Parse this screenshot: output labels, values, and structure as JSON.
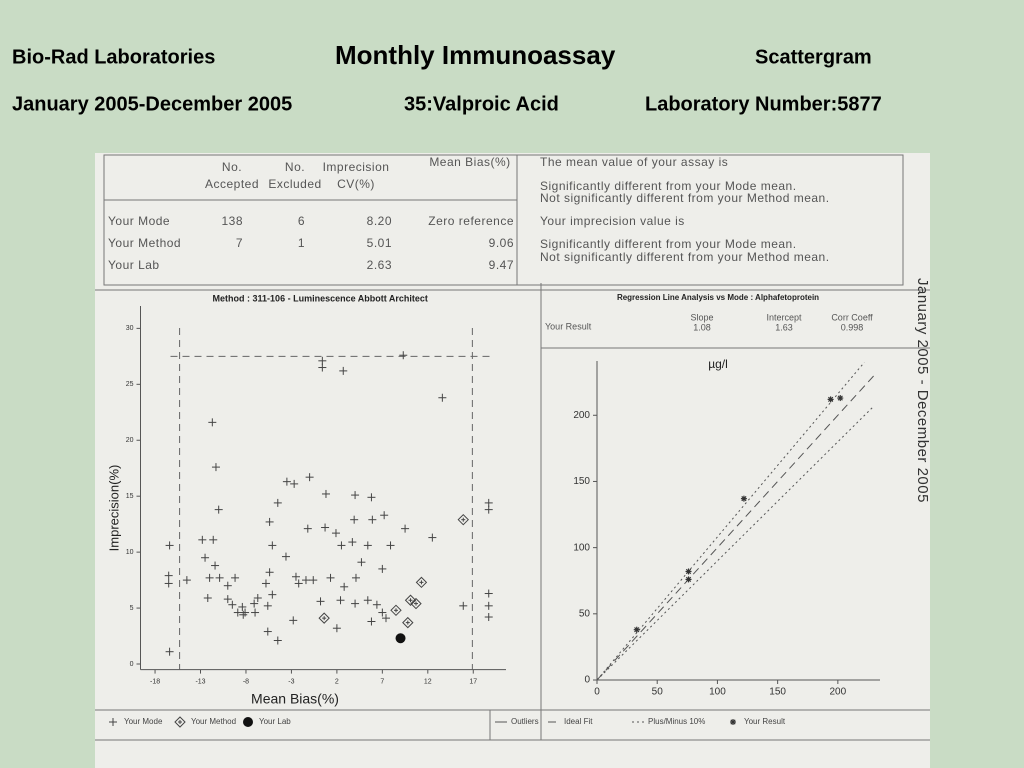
{
  "header": {
    "org": "Bio-Rad  Laboratories",
    "program": "Monthly Immunoassay",
    "report": "Scattergram",
    "period": "January 2005-December 2005",
    "analyte": "35:Valproic Acid",
    "lab": "Laboratory Number:5877"
  },
  "side_text": "January  2005  -  December  2005",
  "table": {
    "columns": [
      [
        "No.",
        "Accepted"
      ],
      [
        "No.",
        "Excluded"
      ],
      [
        "Imprecision",
        "CV(%)"
      ],
      [
        "Mean Bias(%)"
      ]
    ],
    "rows": [
      {
        "label": "Your Mode",
        "cells": [
          "138",
          "6",
          "8.20",
          "Zero reference"
        ]
      },
      {
        "label": "Your Method",
        "cells": [
          "7",
          "1",
          "5.01",
          "9.06"
        ]
      },
      {
        "label": "Your Lab",
        "cells": [
          null,
          null,
          "2.63",
          "9.47"
        ]
      }
    ]
  },
  "notes": [
    "The mean value of your assay is",
    "Significantly different from your Mode mean.",
    "Not significantly different from your Method mean.",
    "Your imprecision value is",
    "Significantly different from your Mode mean.",
    "Not significantly different from your Method mean."
  ],
  "chart_data": [
    {
      "type": "scatter",
      "title": "Method : 311-106 - Luminescence Abbott Architect",
      "xlabel": "Mean Bias(%)",
      "ylabel": "Imprecision(%)",
      "xlim": [
        -19.6,
        20.6
      ],
      "ylim": [
        -0.5,
        32
      ],
      "xticks": [
        -18,
        -13,
        -8,
        -3,
        2,
        7,
        12,
        17
      ],
      "yticks": [
        0,
        5,
        10,
        15,
        20,
        25,
        30
      ],
      "limit_x": [
        -15.3,
        16.9
      ],
      "limit_y": 27.5,
      "series": [
        {
          "name": "Your Mode",
          "marker": "plus",
          "color": "#444",
          "x": [
            -16.4,
            -16.5,
            -16.5,
            -14.5,
            -16.4,
            -11.7,
            -11.3,
            -11.0,
            -12.8,
            -11.6,
            -12.5,
            -11.4,
            -12.0,
            -12.2,
            -10.9,
            -9.2,
            -9.5,
            -8.9,
            -8.3,
            -7.0,
            -5.6,
            -5.1,
            -5.4,
            -5.1,
            -5.4,
            -4.5,
            -3.5,
            -2.7,
            -1.0,
            0.8,
            4.0,
            5.8,
            0.7,
            -1.2,
            1.9,
            2.5,
            3.7,
            3.9,
            5.9,
            7.2,
            9.5,
            12.5,
            7.9,
            5.4,
            -3.6,
            -2.5,
            -1.4,
            1.3,
            4.1,
            4.7,
            7.0,
            2.8,
            2.4,
            4.0,
            5.4,
            6.4,
            7.0,
            7.4,
            5.8,
            2.0,
            -2.8,
            -5.6,
            -4.5,
            -7.1,
            -10.0,
            -8.4,
            0.4,
            2.7,
            0.4,
            9.3,
            13.6,
            18.7,
            18.7,
            18.7,
            18.7,
            18.7,
            15.9,
            0.2,
            -2.2,
            -0.6,
            -5.8,
            -10.0,
            -8.1,
            -6.7
          ],
          "values": [
            10.6,
            7.9,
            7.2,
            7.5,
            1.1,
            21.6,
            17.6,
            13.8,
            11.1,
            11.1,
            9.5,
            8.8,
            7.7,
            5.9,
            7.7,
            7.7,
            5.3,
            4.6,
            4.4,
            4.6,
            5.2,
            6.2,
            8.2,
            10.6,
            12.7,
            14.4,
            16.3,
            16.1,
            16.7,
            15.2,
            15.1,
            14.9,
            12.2,
            12.1,
            11.7,
            10.6,
            10.9,
            12.9,
            12.9,
            13.3,
            12.1,
            11.3,
            10.6,
            10.6,
            9.6,
            7.8,
            7.5,
            7.7,
            7.7,
            9.1,
            8.5,
            6.9,
            5.7,
            5.4,
            5.7,
            5.3,
            4.6,
            4.1,
            3.8,
            3.2,
            3.9,
            2.9,
            2.1,
            5.4,
            5.8,
            5.1,
            26.5,
            26.2,
            27.1,
            27.6,
            23.8,
            14.4,
            13.8,
            6.3,
            5.2,
            4.2,
            5.2,
            5.6,
            7.2,
            7.5,
            7.2,
            7.0,
            4.6,
            5.9
          ]
        },
        {
          "name": "Your Method",
          "marker": "diamond",
          "color": "#444",
          "x": [
            0.6,
            8.5,
            10.1,
            10.7,
            9.8,
            11.3,
            15.9
          ],
          "values": [
            4.1,
            4.8,
            5.7,
            5.4,
            3.7,
            7.3,
            12.9
          ]
        },
        {
          "name": "Your Lab",
          "marker": "dot",
          "color": "#111",
          "x": [
            9.0
          ],
          "values": [
            2.3
          ]
        }
      ]
    },
    {
      "type": "scatter",
      "ylabel": "µg/l",
      "xlim": [
        0,
        235
      ],
      "ylim": [
        0,
        241
      ],
      "xticks": [
        0,
        50,
        100,
        150,
        200
      ],
      "yticks": [
        0,
        50,
        100,
        150,
        200
      ],
      "regression": {
        "title": "Regression Line Analysis vs Mode : Alphafetoprotein",
        "row_label": "Your Result",
        "headers": [
          "Slope",
          "Intercept",
          "Corr Coeff"
        ],
        "values": [
          1.08,
          1.63,
          0.998
        ]
      },
      "series": [
        {
          "name": "Outliers",
          "marker": "line",
          "style": "solid",
          "color": "#555",
          "x": [],
          "values": []
        },
        {
          "name": "Ideal Fit",
          "marker": "line",
          "style": "dashed",
          "color": "#555",
          "x": [
            0,
            230
          ],
          "values": [
            0,
            230
          ]
        },
        {
          "name": "Plus/Minus 10%",
          "marker": "line",
          "style": "dotted",
          "color": "#555",
          "x": [
            0,
            222,
            null,
            0,
            230
          ],
          "values": [
            0,
            240,
            null,
            0,
            207
          ]
        },
        {
          "name": "Your Result",
          "marker": "star",
          "color": "#333",
          "x": [
            33,
            76,
            76,
            122,
            194,
            202
          ],
          "values": [
            38,
            82,
            76,
            137,
            212,
            213
          ]
        }
      ]
    }
  ]
}
